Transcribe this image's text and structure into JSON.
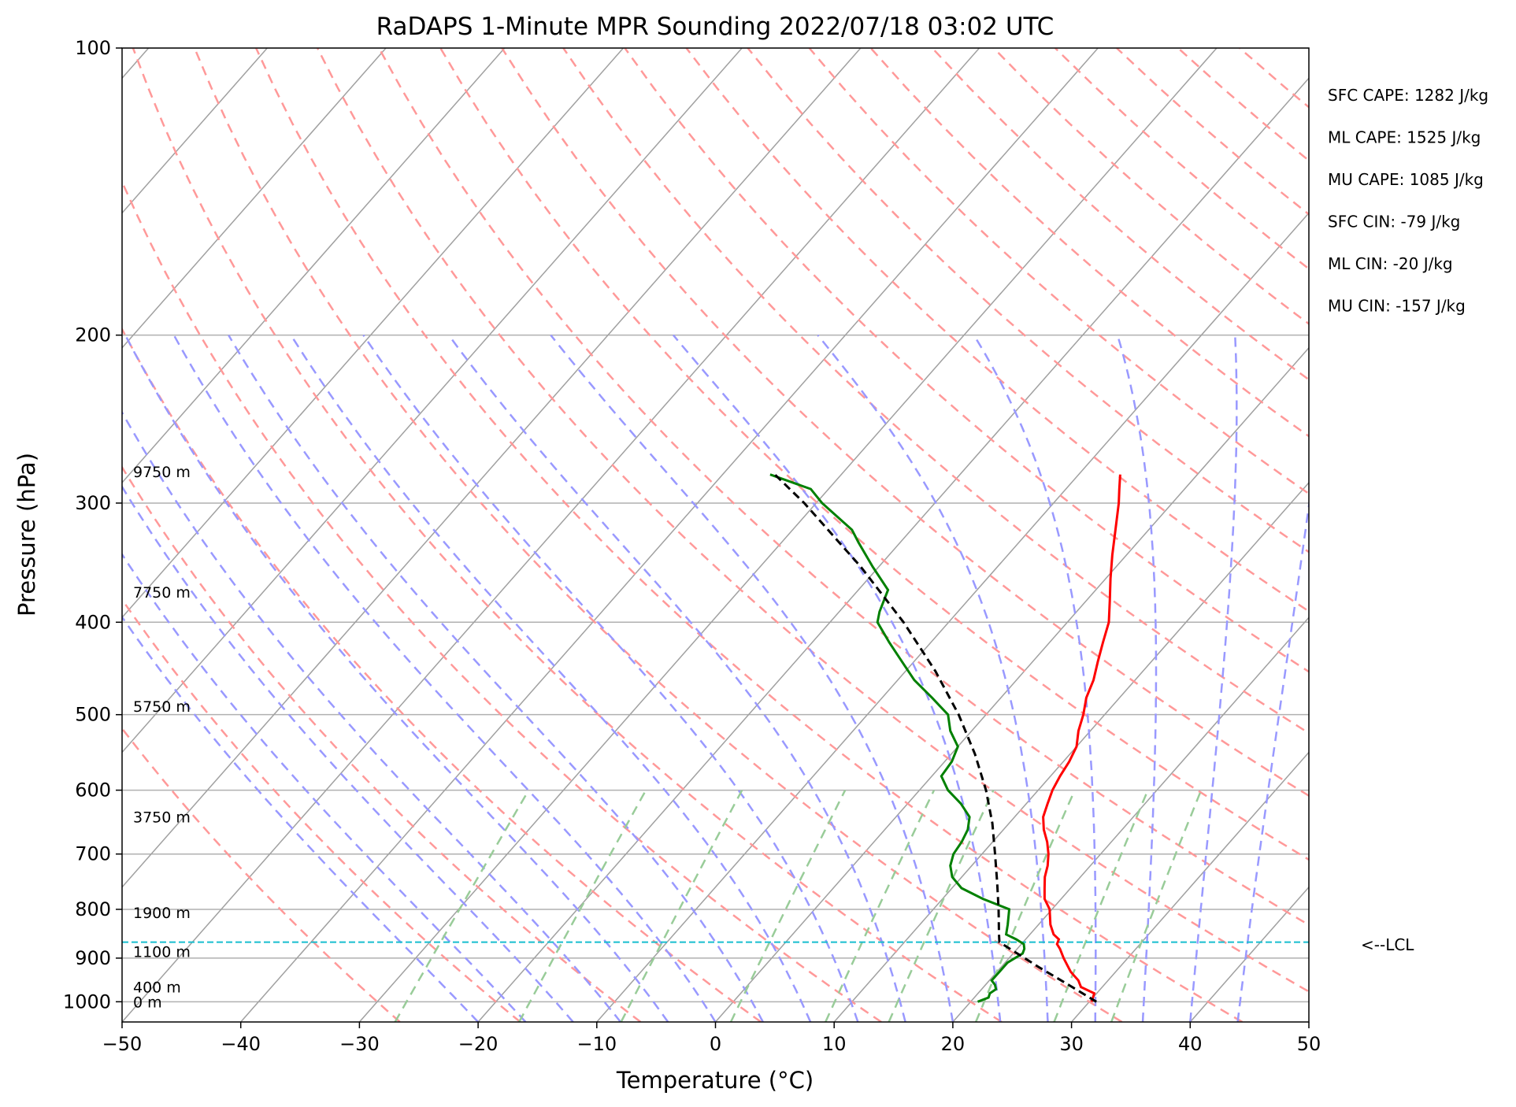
{
  "chart_data": {
    "type": "line",
    "chart_kind": "skew-T log-p sounding",
    "title": "RaDAPS 1-Minute MPR Sounding 2022/07/18 03:02 UTC",
    "xlabel": "Temperature (°C)",
    "ylabel": "Pressure (hPa)",
    "xlim": [
      -50,
      50
    ],
    "ylim": [
      1050,
      100
    ],
    "y_scale": "log",
    "grid": true,
    "x_ticks": [
      -50,
      -40,
      -30,
      -20,
      -10,
      0,
      10,
      20,
      30,
      40,
      50
    ],
    "x_tick_labels": [
      "−50",
      "−40",
      "−30",
      "−20",
      "−10",
      "0",
      "10",
      "20",
      "30",
      "40",
      "50"
    ],
    "y_ticks": [
      100,
      200,
      300,
      400,
      500,
      600,
      700,
      800,
      900,
      1000
    ],
    "y_tick_labels": [
      "100",
      "200",
      "300",
      "400",
      "500",
      "600",
      "700",
      "800",
      "900",
      "1000"
    ],
    "colors": {
      "temperature": "#ff0000",
      "dewpoint": "#008000",
      "parcel": "#000000",
      "lcl": "#17becf",
      "isotherms": "#a0a0a0",
      "dry_adiabats": "#ff9999",
      "moist_adiabats": "#9999ff",
      "mixing_ratio": "#99cc99"
    },
    "series": [
      {
        "role": "temperature",
        "points": [
          [
            1000,
            30.2
          ],
          [
            990,
            30.0
          ],
          [
            980,
            29.8
          ],
          [
            965,
            28.2
          ],
          [
            950,
            27.5
          ],
          [
            930,
            26.2
          ],
          [
            900,
            24.6
          ],
          [
            880,
            23.6
          ],
          [
            870,
            23.0
          ],
          [
            860,
            22.8
          ],
          [
            850,
            22.0
          ],
          [
            830,
            21.0
          ],
          [
            800,
            19.8
          ],
          [
            780,
            18.6
          ],
          [
            760,
            17.8
          ],
          [
            740,
            17.0
          ],
          [
            720,
            16.4
          ],
          [
            700,
            15.6
          ],
          [
            680,
            14.6
          ],
          [
            660,
            13.4
          ],
          [
            640,
            12.4
          ],
          [
            620,
            11.8
          ],
          [
            600,
            11.2
          ],
          [
            580,
            10.8
          ],
          [
            560,
            10.5
          ],
          [
            540,
            10.0
          ],
          [
            520,
            9.0
          ],
          [
            500,
            8.2
          ],
          [
            480,
            7.2
          ],
          [
            460,
            6.5
          ],
          [
            440,
            5.5
          ],
          [
            420,
            4.5
          ],
          [
            400,
            3.5
          ],
          [
            380,
            2.0
          ],
          [
            360,
            0.4
          ],
          [
            340,
            -1.2
          ],
          [
            320,
            -2.8
          ],
          [
            300,
            -4.5
          ],
          [
            290,
            -5.5
          ],
          [
            280,
            -6.5
          ]
        ]
      },
      {
        "role": "dewpoint",
        "points": [
          [
            1000,
            20.6
          ],
          [
            990,
            21.2
          ],
          [
            980,
            21.0
          ],
          [
            970,
            21.2
          ],
          [
            960,
            20.8
          ],
          [
            950,
            20.2
          ],
          [
            930,
            20.2
          ],
          [
            910,
            20.2
          ],
          [
            890,
            20.8
          ],
          [
            880,
            20.6
          ],
          [
            870,
            20.2
          ],
          [
            860,
            19.2
          ],
          [
            850,
            18.0
          ],
          [
            830,
            17.4
          ],
          [
            800,
            16.4
          ],
          [
            780,
            13.4
          ],
          [
            760,
            10.8
          ],
          [
            740,
            9.2
          ],
          [
            720,
            8.2
          ],
          [
            700,
            7.6
          ],
          [
            680,
            7.4
          ],
          [
            660,
            7.0
          ],
          [
            640,
            6.2
          ],
          [
            620,
            4.5
          ],
          [
            600,
            2.4
          ],
          [
            580,
            0.8
          ],
          [
            560,
            0.6
          ],
          [
            540,
            0.0
          ],
          [
            520,
            -1.8
          ],
          [
            500,
            -3.2
          ],
          [
            480,
            -5.8
          ],
          [
            460,
            -8.6
          ],
          [
            440,
            -11.0
          ],
          [
            420,
            -13.5
          ],
          [
            400,
            -16.0
          ],
          [
            390,
            -16.6
          ],
          [
            370,
            -17.5
          ],
          [
            350,
            -20.5
          ],
          [
            330,
            -23.5
          ],
          [
            320,
            -25.0
          ],
          [
            300,
            -29.5
          ],
          [
            290,
            -31.5
          ],
          [
            280,
            -36.0
          ]
        ]
      },
      {
        "role": "parcel",
        "points": [
          [
            1000,
            30.6
          ],
          [
            960,
            27.0
          ],
          [
            920,
            23.2
          ],
          [
            866,
            18.0
          ],
          [
            850,
            17.4
          ],
          [
            800,
            15.5
          ],
          [
            750,
            13.4
          ],
          [
            700,
            11.1
          ],
          [
            650,
            8.6
          ],
          [
            600,
            5.6
          ],
          [
            550,
            2.0
          ],
          [
            500,
            -2.3
          ],
          [
            450,
            -7.5
          ],
          [
            400,
            -13.8
          ],
          [
            350,
            -21.5
          ],
          [
            300,
            -31.0
          ],
          [
            280,
            -35.6
          ]
        ]
      }
    ],
    "lcl_pressure": 866,
    "lcl_label": "<--LCL",
    "height_labels": [
      {
        "pressure": 1000,
        "label": "0 m"
      },
      {
        "pressure": 965,
        "label": "400 m"
      },
      {
        "pressure": 886,
        "label": "1100 m"
      },
      {
        "pressure": 806,
        "label": "1900 m"
      },
      {
        "pressure": 640,
        "label": "3750 m"
      },
      {
        "pressure": 490,
        "label": "5750 m"
      },
      {
        "pressure": 372,
        "label": "7750 m"
      },
      {
        "pressure": 278,
        "label": "9750 m"
      }
    ],
    "indices": [
      "SFC CAPE: 1282 J/kg",
      "ML CAPE: 1525 J/kg",
      "MU CAPE: 1085 J/kg",
      "SFC CIN: -79 J/kg",
      "ML CIN: -20 J/kg",
      "MU CIN: -157 J/kg"
    ]
  }
}
